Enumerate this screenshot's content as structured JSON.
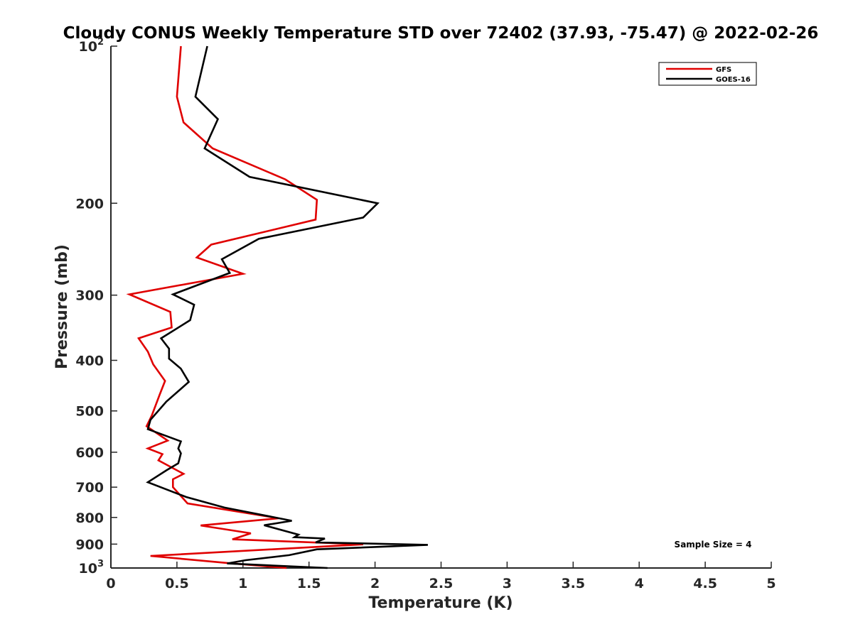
{
  "chart_data": {
    "type": "line",
    "title": "Cloudy CONUS Weekly Temperature STD over 72402 (37.93, -75.47) @ 2022-02-26",
    "xlabel": "Temperature (K)",
    "ylabel": "Pressure (mb)",
    "xlim": [
      0,
      5
    ],
    "ylim": [
      100,
      1000
    ],
    "y_scale": "log",
    "y_reversed": true,
    "grid": false,
    "legend_position": "top-right",
    "x_ticks": [
      "0",
      "0.5",
      "1",
      "1.5",
      "2",
      "2.5",
      "3",
      "3.5",
      "4",
      "4.5",
      "5"
    ],
    "y_ticks": [
      {
        "value": 100,
        "base": "10",
        "exp": "2"
      },
      {
        "value": 200,
        "base": "200",
        "exp": ""
      },
      {
        "value": 300,
        "base": "300",
        "exp": ""
      },
      {
        "value": 400,
        "base": "400",
        "exp": ""
      },
      {
        "value": 500,
        "base": "500",
        "exp": ""
      },
      {
        "value": 600,
        "base": "600",
        "exp": ""
      },
      {
        "value": 700,
        "base": "700",
        "exp": ""
      },
      {
        "value": 800,
        "base": "800",
        "exp": ""
      },
      {
        "value": 900,
        "base": "900",
        "exp": ""
      },
      {
        "value": 1000,
        "base": "10",
        "exp": "3"
      }
    ],
    "series": [
      {
        "name": "GFS",
        "color": "#e00000",
        "points": [
          [
            0.53,
            100
          ],
          [
            0.5,
            125
          ],
          [
            0.55,
            140
          ],
          [
            0.77,
            157
          ],
          [
            1.32,
            180
          ],
          [
            1.56,
            197
          ],
          [
            1.55,
            215
          ],
          [
            0.76,
            240
          ],
          [
            0.65,
            254
          ],
          [
            1.0,
            273
          ],
          [
            0.14,
            299
          ],
          [
            0.45,
            323
          ],
          [
            0.46,
            346
          ],
          [
            0.21,
            363
          ],
          [
            0.28,
            385
          ],
          [
            0.32,
            407
          ],
          [
            0.41,
            438
          ],
          [
            0.37,
            465
          ],
          [
            0.31,
            510
          ],
          [
            0.27,
            535
          ],
          [
            0.43,
            570
          ],
          [
            0.28,
            590
          ],
          [
            0.39,
            605
          ],
          [
            0.36,
            622
          ],
          [
            0.55,
            660
          ],
          [
            0.47,
            676
          ],
          [
            0.47,
            700
          ],
          [
            0.58,
            752
          ],
          [
            1.27,
            803
          ],
          [
            0.68,
            829
          ],
          [
            1.06,
            858
          ],
          [
            0.92,
            881
          ],
          [
            1.91,
            901
          ],
          [
            0.3,
            948
          ],
          [
            0.88,
            978
          ],
          [
            1.33,
            1000
          ]
        ]
      },
      {
        "name": "GOES-16",
        "color": "#000000",
        "points": [
          [
            0.73,
            100
          ],
          [
            0.64,
            125
          ],
          [
            0.81,
            138
          ],
          [
            0.71,
            157
          ],
          [
            1.05,
            178
          ],
          [
            2.02,
            200
          ],
          [
            1.91,
            213
          ],
          [
            1.12,
            234
          ],
          [
            0.84,
            256
          ],
          [
            0.9,
            272
          ],
          [
            0.47,
            299
          ],
          [
            0.63,
            313
          ],
          [
            0.6,
            335
          ],
          [
            0.38,
            363
          ],
          [
            0.44,
            380
          ],
          [
            0.44,
            397
          ],
          [
            0.53,
            415
          ],
          [
            0.59,
            440
          ],
          [
            0.42,
            480
          ],
          [
            0.3,
            520
          ],
          [
            0.28,
            542
          ],
          [
            0.53,
            572
          ],
          [
            0.51,
            590
          ],
          [
            0.53,
            603
          ],
          [
            0.51,
            630
          ],
          [
            0.42,
            650
          ],
          [
            0.28,
            685
          ],
          [
            0.57,
            731
          ],
          [
            0.86,
            766
          ],
          [
            1.22,
            798
          ],
          [
            1.37,
            812
          ],
          [
            1.16,
            828
          ],
          [
            1.42,
            863
          ],
          [
            1.39,
            873
          ],
          [
            1.62,
            878
          ],
          [
            1.55,
            893
          ],
          [
            2.4,
            903
          ],
          [
            1.56,
            921
          ],
          [
            1.35,
            945
          ],
          [
            1.02,
            966
          ],
          [
            0.88,
            980
          ],
          [
            1.64,
            1000
          ]
        ]
      }
    ],
    "annotation": "Sample Size = 4"
  }
}
